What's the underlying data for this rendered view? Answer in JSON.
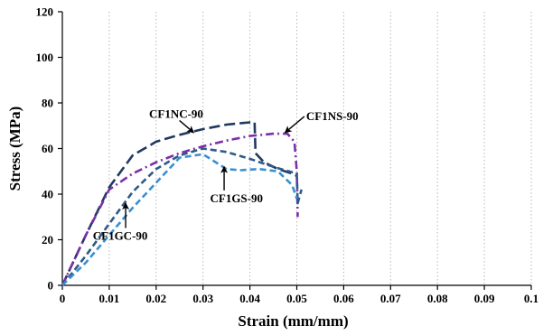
{
  "chart_data": {
    "type": "line",
    "title": "",
    "xlabel": "Strain (mm/mm)",
    "ylabel": "Stress (MPa)",
    "xlim": [
      0,
      0.1
    ],
    "ylim": [
      0,
      120
    ],
    "xticks": [
      0,
      0.01,
      0.02,
      0.03,
      0.04,
      0.05,
      0.06,
      0.07,
      0.08,
      0.09,
      0.1
    ],
    "xtick_labels": [
      "0",
      "0.01",
      "0.02",
      "0.03",
      "0.04",
      "0.05",
      "0.06",
      "0.07",
      "0.08",
      "0.09",
      "0.1"
    ],
    "yticks": [
      0,
      20,
      40,
      60,
      80,
      100,
      120
    ],
    "ytick_labels": [
      "0",
      "20",
      "40",
      "60",
      "80",
      "100",
      "120"
    ],
    "grid": "vertical dotted",
    "legend": "none (curves labeled by annotations)",
    "series": [
      {
        "name": "CF1NC-90",
        "color": "#1f3a5f",
        "dash": "long-dash",
        "x": [
          0,
          0.005,
          0.01,
          0.015,
          0.02,
          0.025,
          0.03,
          0.035,
          0.04,
          0.041,
          0.0412,
          0.043,
          0.046,
          0.049,
          0.05
        ],
        "y": [
          0,
          22,
          43,
          57,
          63,
          66,
          68.5,
          70.5,
          71.5,
          71.5,
          58,
          54,
          51,
          49,
          48
        ]
      },
      {
        "name": "CF1NS-90",
        "color": "#7b2fa8",
        "dash": "dash-dot",
        "x": [
          0,
          0.005,
          0.01,
          0.015,
          0.02,
          0.025,
          0.03,
          0.035,
          0.04,
          0.045,
          0.048,
          0.0495,
          0.05,
          0.0502
        ],
        "y": [
          0,
          22,
          42,
          49,
          54,
          58,
          61,
          63.5,
          65.5,
          66.5,
          66.5,
          63,
          50,
          30
        ]
      },
      {
        "name": "CF1GC-90",
        "color": "#2e5a87",
        "dash": "dash",
        "x": [
          0,
          0.005,
          0.01,
          0.015,
          0.02,
          0.025,
          0.03,
          0.035,
          0.04,
          0.045,
          0.05,
          0.0502,
          0.051
        ],
        "y": [
          0,
          13,
          27,
          41,
          51,
          57,
          60,
          58.5,
          55.5,
          52,
          49,
          36,
          42
        ]
      },
      {
        "name": "CF1GS-90",
        "color": "#3a8fd0",
        "dash": "dash",
        "x": [
          0,
          0.005,
          0.01,
          0.015,
          0.02,
          0.025,
          0.03,
          0.035,
          0.038,
          0.042,
          0.046,
          0.049,
          0.05
        ],
        "y": [
          0,
          10,
          22,
          34,
          45,
          56,
          57.5,
          51,
          50.5,
          51,
          50,
          44,
          38
        ]
      }
    ],
    "annotations": [
      {
        "text": "CF1NC-90",
        "x": 0.0185,
        "y": 73.5,
        "arrow_to": [
          0.028,
          67
        ]
      },
      {
        "text": "CF1NS-90",
        "x": 0.052,
        "y": 72.5,
        "arrow_to": [
          0.0475,
          67
        ]
      },
      {
        "text": "CF1GS-90",
        "x": 0.0315,
        "y": 36.5,
        "arrow_to": [
          0.0345,
          52
        ]
      },
      {
        "text": "CF1GC-90",
        "x": 0.0065,
        "y": 20,
        "arrow_to": [
          0.0135,
          36
        ]
      }
    ]
  }
}
